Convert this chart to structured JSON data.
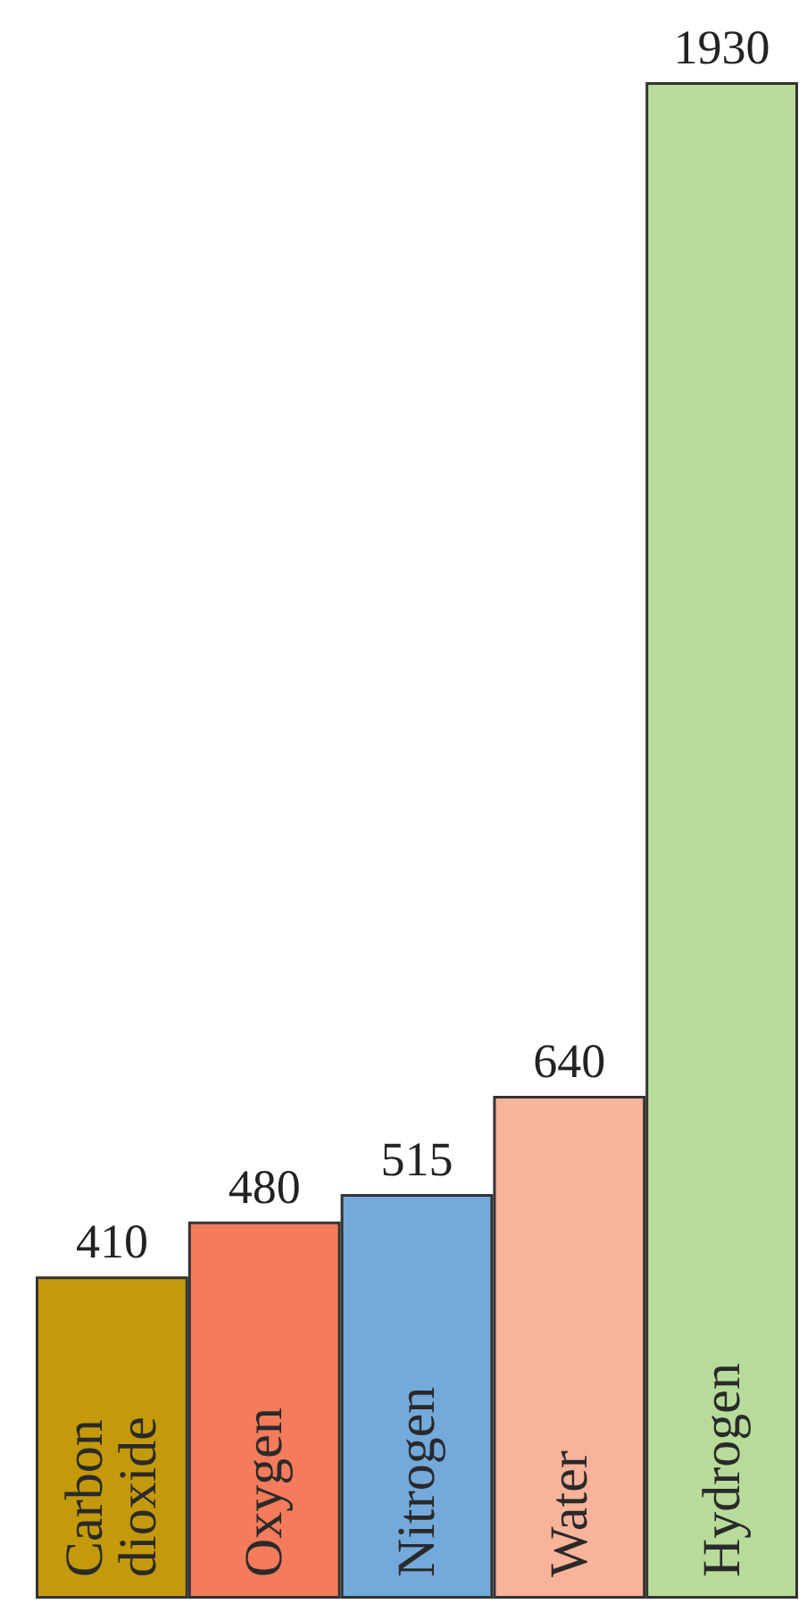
{
  "chart_data": {
    "type": "bar",
    "categories": [
      "Carbon dioxide",
      "Oxygen",
      "Nitrogen",
      "Water",
      "Hydrogen"
    ],
    "values": [
      410,
      480,
      515,
      640,
      1930
    ],
    "colors": [
      "#c49a0a",
      "#f47b5b",
      "#74a9dc",
      "#f8b39b",
      "#b7dc9a"
    ],
    "data_labels": true,
    "grid": false
  }
}
